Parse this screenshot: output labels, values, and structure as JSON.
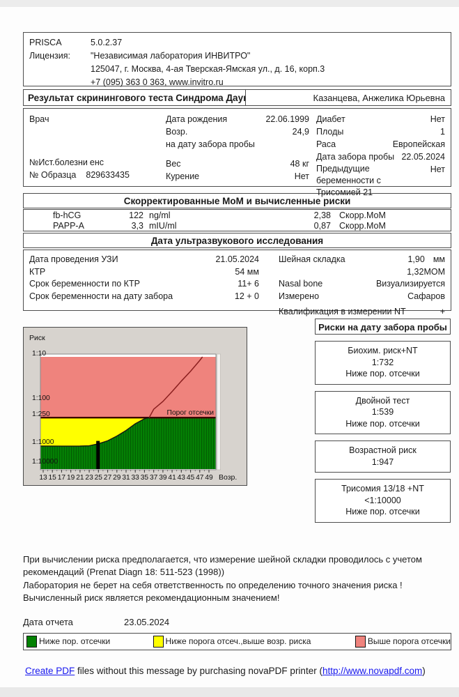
{
  "header": {
    "product": "PRISCA",
    "version": "5.0.2.37",
    "license_label": "Лицензия:",
    "license_name": "\"Независимая лаборатория ИНВИТРО\"",
    "license_addr": "125047, г. Москва, 4-ая Тверская-Ямская ул., д. 16, корп.3",
    "license_phone": "+7 (095) 363 0 363, www.invitro.ru"
  },
  "title_bar": {
    "title": "Результат скринингового теста Синдрома Дауна",
    "patient_name": "Казанцева, Анжелика Юрьевна"
  },
  "patient": {
    "doctor_label": "Врач",
    "history_label": "№Ист.болезни",
    "history_value": "енс",
    "sample_label": "№ Образца",
    "sample_value": "829633435",
    "col2": [
      {
        "label": "Дата рождения",
        "value": "22.06.1999"
      },
      {
        "label": "Возр.",
        "value": "24,9"
      },
      {
        "label": "на дату забора пробы",
        "value": ""
      },
      {
        "label": "Вес",
        "value": "48  кг"
      },
      {
        "label": "Курение",
        "value": "Нет"
      }
    ],
    "col3": [
      {
        "label": "Диабет",
        "value": "Нет"
      },
      {
        "label": "Плоды",
        "value": "1"
      },
      {
        "label": "Раса",
        "value": "Европейская"
      },
      {
        "label": "Дата забора пробы",
        "value": "22.05.2024"
      },
      {
        "label": "Предыдущие беременности с Трисомией 21",
        "value": "Нет"
      }
    ]
  },
  "mom_section": {
    "title": "Скорректированные МоМ и вычисленные риски",
    "rows": [
      {
        "name": "fb-hCG",
        "value": "122",
        "unit": "ng/ml",
        "mom": "2,38",
        "mom_label": "Скорр.МоМ"
      },
      {
        "name": "PAPP-A",
        "value": "3,3",
        "unit": "mIU/ml",
        "mom": "0,87",
        "mom_label": "Скорр.МоМ"
      }
    ]
  },
  "ultrasound": {
    "title": "Дата ультразвукового исследования",
    "left": [
      {
        "label": "Дата проведения УЗИ",
        "value": "21.05.2024"
      },
      {
        "label": "КТР",
        "value": "54 мм"
      },
      {
        "label": "Срок беременности по КТР",
        "value": "11+  6"
      },
      {
        "label": "Срок беременности на дату забора",
        "value": "12 +  0"
      }
    ],
    "right": [
      {
        "label": "Шейная складка",
        "value": "1,90",
        "unit": "мм"
      },
      {
        "label": "",
        "value": "1,32МОМ",
        "unit": ""
      },
      {
        "label": "Nasal bone",
        "value": "Визуализируется",
        "unit": ""
      },
      {
        "label": "Измерено",
        "value": "Сафаров",
        "unit": ""
      },
      {
        "label": "Квалификация в измерении NT",
        "value": "+",
        "unit": ""
      }
    ]
  },
  "risks": {
    "title": "Риски на дату забора пробы",
    "boxes": [
      {
        "name": "Биохим. риск+NT",
        "value": "1:732",
        "status": "Ниже пор. отсечки"
      },
      {
        "name": "Двойной тест",
        "value": "1:539",
        "status": "Ниже пор. отсечки"
      },
      {
        "name": "Возрастной риск",
        "value": "1:947",
        "status": ""
      },
      {
        "name": "Трисомия 13/18 +NT",
        "value": "<1:10000",
        "status": "Ниже пор. отсечки"
      }
    ]
  },
  "chart_data": {
    "type": "area",
    "y_axis_title": "Риск",
    "x_axis_title": "Возр.",
    "x_ticks": [
      13,
      15,
      17,
      19,
      21,
      23,
      25,
      27,
      29,
      31,
      33,
      35,
      37,
      39,
      41,
      43,
      45,
      47,
      49
    ],
    "y_tick_labels": [
      "1:10",
      "1:100",
      "1:250",
      "1:1000",
      "1:10000"
    ],
    "y_tick_risks": [
      10,
      100,
      250,
      1000,
      10000
    ],
    "y_scale": "log",
    "xlim": [
      12.4,
      50.5
    ],
    "cutoff": {
      "risk": 250,
      "label": "Порог отсечки"
    },
    "age_risk_curve": [
      [
        13,
        1070
      ],
      [
        17,
        1080
      ],
      [
        21,
        1070
      ],
      [
        23,
        1030
      ],
      [
        25,
        918
      ],
      [
        27,
        790
      ],
      [
        29,
        624
      ],
      [
        31,
        473
      ],
      [
        33,
        339
      ],
      [
        35,
        264
      ],
      [
        36,
        250
      ],
      [
        37,
        155
      ],
      [
        39,
        100
      ],
      [
        41,
        60
      ],
      [
        43,
        35
      ],
      [
        45,
        21
      ],
      [
        47,
        12
      ],
      [
        47.6,
        10
      ]
    ],
    "patient_marker": {
      "age": 24.9,
      "risk": 947
    },
    "legend_position": "bottom",
    "colors": {
      "below_cutoff": "#048204",
      "hatch": "#025a02",
      "between": "#ffff00",
      "above_cutoff": "#ef837d",
      "cutoff_line": "#3d0000",
      "curve": "#8b1f1f",
      "marker": "#000000",
      "panel": "#d7d3ce"
    }
  },
  "notes": {
    "line1": "При вычислении риска предполагается, что измерение шейной складки проводилось с учетом рекомендаций (Prenat Diagn 18: 511-523 (1998))",
    "line2": "Лаборатория не берет на себя ответственность по определению точного значения риска ! Вычисленный риск является рекомендационным значением!"
  },
  "report": {
    "label": "Дата отчета",
    "value": "23.05.2024"
  },
  "legend": {
    "items": [
      {
        "color": "#048204",
        "label": "Ниже пор. отсечки"
      },
      {
        "color": "#ffff00",
        "label": "Ниже порога отсеч.,выше возр. риска"
      },
      {
        "color": "#ef837d",
        "label": "Выше порога отсечки"
      }
    ]
  },
  "pdf_notice": {
    "link1": "Create PDF",
    "text1": " files without this message by purchasing novaPDF printer (",
    "link2": "http://www.novapdf.com",
    "text2": ")"
  }
}
